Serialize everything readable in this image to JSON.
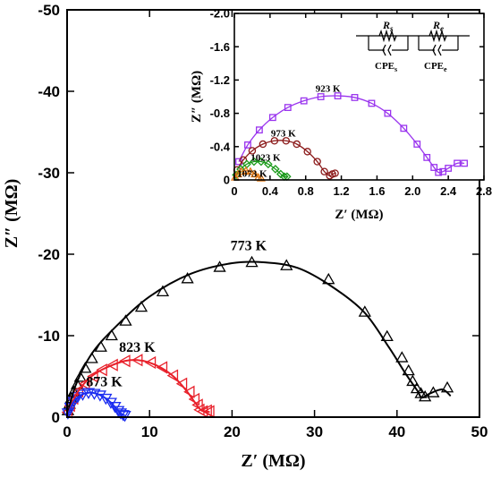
{
  "chart_data": [
    {
      "type": "scatter",
      "title": "",
      "xlabel": "Z′ (MΩ)",
      "ylabel": "Z″ (MΩ)",
      "xlim": [
        0,
        50
      ],
      "ylim": [
        0,
        -50
      ],
      "xticks": [
        "0",
        "10",
        "20",
        "30",
        "40",
        "50"
      ],
      "yticks": [
        "0",
        "-10",
        "-20",
        "-30",
        "-40",
        "-50"
      ],
      "grid": false,
      "series": [
        {
          "name": "773 K",
          "color": "#000000",
          "marker": "triangle-up",
          "x": [
            0.1,
            0.3,
            0.5,
            0.8,
            1.2,
            1.6,
            2.2,
            3.0,
            4.1,
            5.4,
            7.1,
            9.0,
            11.6,
            14.6,
            18.5,
            22.4,
            26.6,
            31.7,
            36.1,
            38.8,
            40.6,
            41.4,
            41.9,
            42.4,
            42.9,
            43.4,
            44.4,
            46.1
          ],
          "y": [
            -0.8,
            -1.6,
            -2.3,
            -3.1,
            -4.0,
            -4.9,
            -6.0,
            -7.2,
            -8.6,
            -10.0,
            -11.8,
            -13.5,
            -15.4,
            -17.0,
            -18.4,
            -19.0,
            -18.6,
            -16.9,
            -12.9,
            -9.9,
            -7.3,
            -5.7,
            -4.4,
            -3.5,
            -2.9,
            -2.5,
            -3.0,
            -3.6
          ]
        },
        {
          "name": "823 K",
          "color": "#e8202a",
          "marker": "triangle-left",
          "x": [
            0.1,
            0.4,
            0.8,
            1.4,
            2.2,
            3.2,
            4.3,
            5.6,
            7.1,
            8.6,
            10.2,
            11.6,
            12.9,
            14.0,
            14.9,
            15.5,
            15.9,
            16.1,
            16.5,
            17.0,
            17.3
          ],
          "y": [
            -0.6,
            -1.4,
            -2.3,
            -3.2,
            -4.1,
            -5.0,
            -5.8,
            -6.4,
            -6.9,
            -7.0,
            -6.7,
            -6.1,
            -5.1,
            -4.1,
            -3.1,
            -2.2,
            -1.5,
            -0.9,
            -0.7,
            -0.8,
            -0.7
          ]
        },
        {
          "name": "873 K",
          "color": "#1a2cf0",
          "marker": "triangle-down",
          "x": [
            0.1,
            0.4,
            0.8,
            1.3,
            1.9,
            2.6,
            3.3,
            4.0,
            4.7,
            5.3,
            5.8,
            6.2,
            6.5,
            6.8,
            7.0
          ],
          "y": [
            -0.5,
            -1.2,
            -1.9,
            -2.5,
            -2.8,
            -3.0,
            -2.9,
            -2.7,
            -2.3,
            -1.8,
            -1.3,
            -0.8,
            -0.5,
            -0.3,
            -0.2
          ]
        }
      ],
      "fit_curves": [
        {
          "name": "773 K fit",
          "color": "#000000",
          "x": [
            0,
            1,
            3,
            6,
            10,
            15,
            20,
            24,
            28,
            32,
            36,
            39,
            41,
            42.5,
            43,
            44,
            45.5,
            46.5
          ],
          "y": [
            0,
            -3.8,
            -7.8,
            -11.2,
            -14.8,
            -17.6,
            -18.9,
            -19.0,
            -18.3,
            -16.1,
            -12.9,
            -8.6,
            -5.4,
            -3.2,
            -2.4,
            -2.9,
            -3.4,
            -2.6
          ]
        },
        {
          "name": "823 K fit",
          "color": "#e8202a",
          "x": [
            0,
            1,
            2.5,
            4,
            5.5,
            7,
            8.5,
            10,
            11.5,
            13,
            14.5,
            15.5,
            16.3,
            17,
            17.3
          ],
          "y": [
            0,
            -2.6,
            -4.6,
            -5.7,
            -6.4,
            -6.9,
            -7.0,
            -6.7,
            -6.0,
            -4.9,
            -3.2,
            -1.8,
            -0.8,
            -0.7,
            -0.6
          ]
        },
        {
          "name": "873 K fit",
          "color": "#1a2cf0",
          "x": [
            0,
            0.8,
            1.7,
            2.6,
            3.5,
            4.4,
            5.3,
            6.0,
            6.6,
            7.0
          ],
          "y": [
            0,
            -1.9,
            -2.7,
            -3.0,
            -2.9,
            -2.5,
            -1.8,
            -1.0,
            -0.4,
            -0.2
          ]
        }
      ],
      "annotations": [
        {
          "text": "773 K",
          "x": 22.0,
          "y": -20.5
        },
        {
          "text": "823 K",
          "x": 8.5,
          "y": -8.0
        },
        {
          "text": "873 K",
          "x": 4.5,
          "y": -3.8
        }
      ]
    },
    {
      "type": "scatter",
      "title": "",
      "xlabel": "Z′ (MΩ)",
      "ylabel": "Z″ (MΩ)",
      "xlim": [
        0,
        2.8
      ],
      "ylim": [
        0,
        -2.0
      ],
      "xticks": [
        "0",
        "0.4",
        "0.8",
        "1.2",
        "1.6",
        "2.0",
        "2.4",
        "2.8"
      ],
      "yticks": [
        "0",
        "-0.4",
        "-0.8",
        "-1.2",
        "-1.6",
        "-2.0"
      ],
      "grid": false,
      "series": [
        {
          "name": "923 K",
          "color": "#9933ee",
          "marker": "square",
          "x": [
            0.05,
            0.15,
            0.28,
            0.43,
            0.6,
            0.78,
            0.97,
            1.16,
            1.35,
            1.54,
            1.72,
            1.9,
            2.05,
            2.16,
            2.24,
            2.29,
            2.34,
            2.4,
            2.5,
            2.58
          ],
          "y": [
            -0.22,
            -0.42,
            -0.6,
            -0.75,
            -0.87,
            -0.95,
            -1.0,
            -1.01,
            -0.99,
            -0.92,
            -0.8,
            -0.62,
            -0.43,
            -0.27,
            -0.15,
            -0.09,
            -0.1,
            -0.14,
            -0.2,
            -0.2
          ]
        },
        {
          "name": "973 K",
          "color": "#8b1a1a",
          "marker": "circle",
          "x": [
            0.03,
            0.1,
            0.2,
            0.32,
            0.45,
            0.58,
            0.7,
            0.82,
            0.93,
            1.01,
            1.07,
            1.1,
            1.13
          ],
          "y": [
            -0.12,
            -0.24,
            -0.35,
            -0.43,
            -0.47,
            -0.47,
            -0.43,
            -0.34,
            -0.22,
            -0.1,
            -0.05,
            -0.07,
            -0.08
          ]
        },
        {
          "name": "1023 K",
          "color": "#1a9a1a",
          "marker": "diamond",
          "x": [
            0.02,
            0.07,
            0.14,
            0.22,
            0.3,
            0.38,
            0.46,
            0.52,
            0.56,
            0.59
          ],
          "y": [
            -0.06,
            -0.13,
            -0.19,
            -0.22,
            -0.22,
            -0.19,
            -0.13,
            -0.07,
            -0.04,
            -0.04
          ]
        },
        {
          "name": "1073 K",
          "color": "#e07b1a",
          "marker": "triangle-up",
          "x": [
            0.01,
            0.04,
            0.08,
            0.13,
            0.18,
            0.23,
            0.27,
            0.3
          ],
          "y": [
            -0.03,
            -0.07,
            -0.1,
            -0.11,
            -0.1,
            -0.07,
            -0.03,
            -0.02
          ]
        }
      ],
      "annotations": [
        {
          "text": "923 K",
          "x": 1.05,
          "y": -1.06
        },
        {
          "text": "973 K",
          "x": 0.55,
          "y": -0.52
        },
        {
          "text": "1023 K",
          "x": 0.35,
          "y": -0.23
        },
        {
          "text": "1073 K",
          "x": 0.2,
          "y": -0.04
        }
      ],
      "circuit": {
        "resistor_1": "R",
        "resistor_1_sub": "s",
        "resistor_2": "R",
        "resistor_2_sub": "e",
        "cpe_1": "CPE",
        "cpe_1_sub": "s",
        "cpe_2": "CPE",
        "cpe_2_sub": "e"
      }
    }
  ]
}
